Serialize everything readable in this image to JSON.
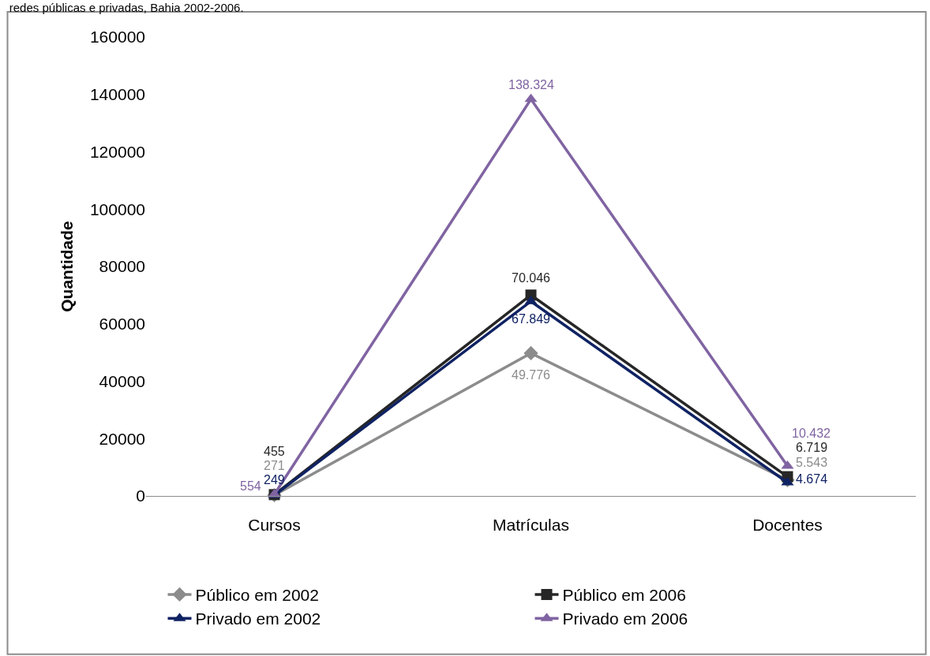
{
  "chart_data": {
    "type": "line",
    "title": "redes públicas e privadas, Bahia 2002-2006.",
    "ylabel": "Quantidade",
    "categories": [
      "Cursos",
      "Matrículas",
      "Docentes"
    ],
    "series": [
      {
        "name": "Público em 2002",
        "color": "#8c8c8c",
        "marker": "diamond",
        "values": [
          271,
          49776,
          5543
        ],
        "value_labels": [
          "271",
          "49.776",
          "5.543"
        ]
      },
      {
        "name": "Público em 2006",
        "color": "#262626",
        "marker": "square",
        "values": [
          455,
          70046,
          6719
        ],
        "value_labels": [
          "455",
          "70.046",
          "6.719"
        ]
      },
      {
        "name": "Privado em 2002",
        "color": "#0f2263",
        "marker": "triangle",
        "values": [
          249,
          67849,
          4674
        ],
        "value_labels": [
          "249",
          "67.849",
          "4.674"
        ]
      },
      {
        "name": "Privado em 2006",
        "color": "#8064a2",
        "marker": "triangle",
        "values": [
          554,
          138324,
          10432
        ],
        "value_labels": [
          "554",
          "138.324",
          "10.432"
        ]
      }
    ],
    "ylim": [
      0,
      160000
    ],
    "yticks": [
      0,
      20000,
      40000,
      60000,
      80000,
      100000,
      120000,
      140000,
      160000
    ],
    "legend": "bottom",
    "line_style": "solid"
  }
}
